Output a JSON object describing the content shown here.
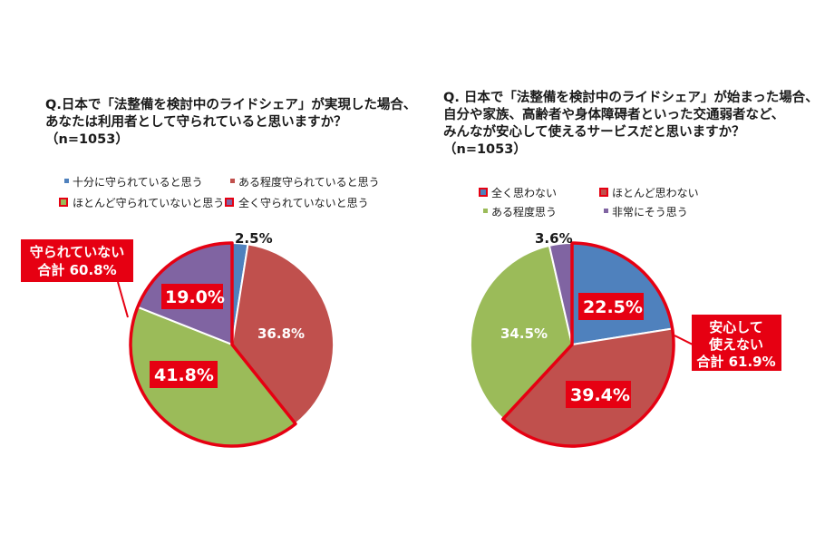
{
  "chart_data": [
    {
      "type": "pie",
      "title_lines": [
        "Q.日本で「法整備を検討中のライドシェア」が実現した場合、",
        "あなたは利用者として守られていると思いますか？",
        "（n=1053）"
      ],
      "legend": [
        "十分に守られていると思う",
        "ある程度守られていると思う",
        "ほとんど守られていないと思う",
        "全く守られていないと思う"
      ],
      "colors": [
        "#4f81bd",
        "#c0504d",
        "#9bbb59",
        "#8064a2"
      ],
      "slices": [
        {
          "label": "十分に守られていると思う",
          "value": 2.5,
          "text": "2.5%"
        },
        {
          "label": "ある程度守られていると思う",
          "value": 36.8,
          "text": "36.8%"
        },
        {
          "label": "ほとんど守られていないと思う",
          "value": 41.8,
          "text": "41.8%"
        },
        {
          "label": "全く守られていないと思う",
          "value": 19.0,
          "text": "19.0%"
        }
      ],
      "callout": {
        "lines": [
          "守られていない",
          "合計 60.8%"
        ]
      }
    },
    {
      "type": "pie",
      "title_lines": [
        "Q. 日本で「法整備を検討中のライドシェア」が始まった場合、",
        "自分や家族、高齢者や身体障碍者といった交通弱者など、",
        "みんなが安心して使えるサービスだと思いますか？",
        "（n=1053）"
      ],
      "legend": [
        "全く思わない",
        "ほとんど思わない",
        "ある程度思う",
        "非常にそう思う"
      ],
      "colors": [
        "#4f81bd",
        "#c0504d",
        "#9bbb59",
        "#8064a2"
      ],
      "slices": [
        {
          "label": "全く思わない",
          "value": 22.5,
          "text": "22.5%"
        },
        {
          "label": "ほとんど思わない",
          "value": 39.4,
          "text": "39.4%"
        },
        {
          "label": "ある程度思う",
          "value": 34.5,
          "text": "34.5%"
        },
        {
          "label": "非常にそう思う",
          "value": 3.6,
          "text": "3.6%"
        }
      ],
      "callout": {
        "lines": [
          "安心して",
          "使えない",
          "合計 61.9%"
        ]
      }
    }
  ]
}
